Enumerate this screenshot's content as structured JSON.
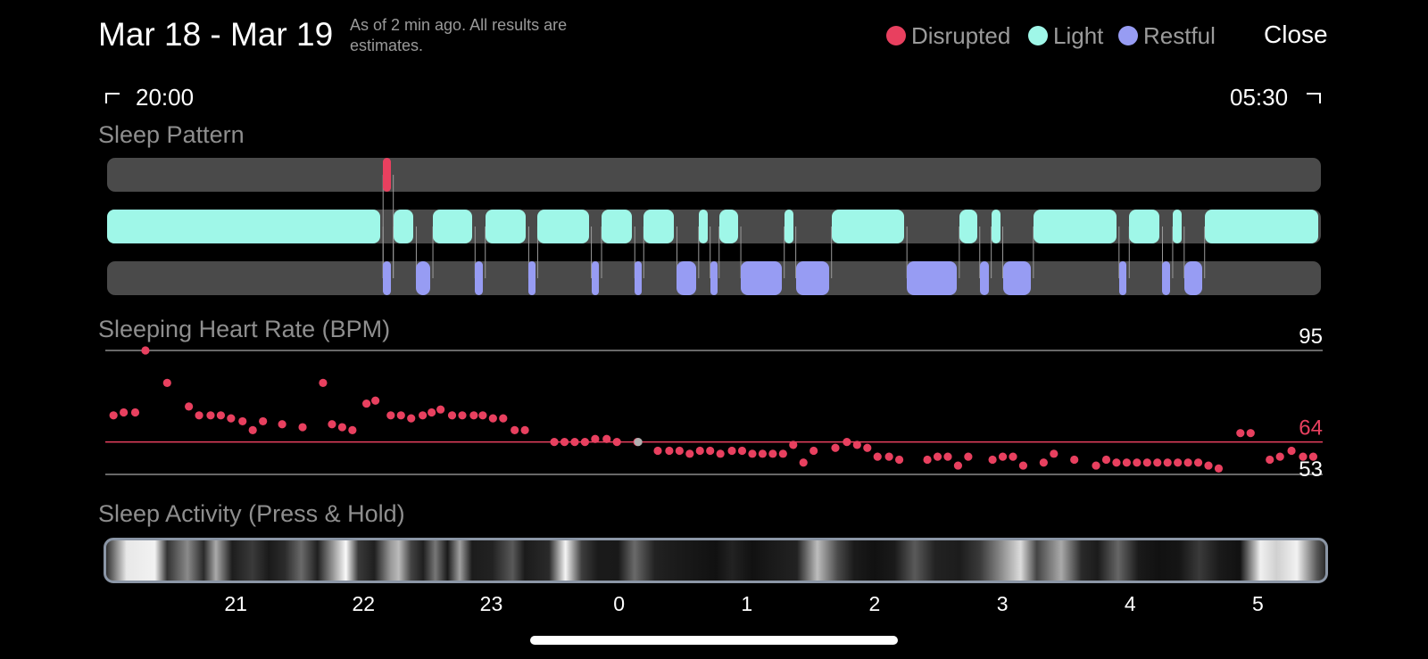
{
  "header": {
    "date_range": "Mar 18 - Mar 19",
    "note": "As of 2 min ago. All results are estimates.",
    "close_label": "Close"
  },
  "legend": [
    {
      "label": "Disrupted",
      "color": "#e8405f"
    },
    {
      "label": "Light",
      "color": "#9ff7e8"
    },
    {
      "label": "Restful",
      "color": "#979cf3"
    }
  ],
  "time_range": {
    "start": "20:00",
    "end": "05:30"
  },
  "sleep_pattern": {
    "title": "Sleep Pattern",
    "disrupted": [
      [
        2.16,
        2.24
      ]
    ],
    "light": [
      [
        0.0,
        2.16
      ],
      [
        2.24,
        2.42
      ],
      [
        2.55,
        2.88
      ],
      [
        2.96,
        3.3
      ],
      [
        3.37,
        3.79
      ],
      [
        3.87,
        4.13
      ],
      [
        4.2,
        4.46
      ],
      [
        4.63,
        4.72
      ],
      [
        4.79,
        4.96
      ],
      [
        5.3,
        5.39
      ],
      [
        5.67,
        6.26
      ],
      [
        6.67,
        6.83
      ],
      [
        6.92,
        7.01
      ],
      [
        7.25,
        7.92
      ],
      [
        8.0,
        8.26
      ],
      [
        8.34,
        8.43
      ],
      [
        8.59,
        9.5
      ]
    ],
    "restful": [
      [
        2.16,
        2.24
      ],
      [
        2.42,
        2.55
      ],
      [
        2.88,
        2.96
      ],
      [
        3.3,
        3.37
      ],
      [
        3.79,
        3.87
      ],
      [
        4.13,
        4.2
      ],
      [
        4.46,
        4.63
      ],
      [
        4.72,
        4.79
      ],
      [
        4.96,
        5.3
      ],
      [
        5.39,
        5.67
      ],
      [
        6.26,
        6.67
      ],
      [
        6.83,
        6.92
      ],
      [
        7.01,
        7.25
      ],
      [
        7.92,
        8.0
      ],
      [
        8.26,
        8.34
      ],
      [
        8.43,
        8.59
      ]
    ]
  },
  "heart_rate": {
    "title": "Sleeping Heart Rate (BPM)",
    "max_label": "95",
    "avg_label": "64",
    "min_label": "53",
    "max": 95,
    "avg": 64,
    "min": 53,
    "points": [
      [
        0.05,
        73
      ],
      [
        0.13,
        74
      ],
      [
        0.22,
        74
      ],
      [
        0.3,
        95
      ],
      [
        0.47,
        84
      ],
      [
        0.64,
        76
      ],
      [
        0.72,
        73
      ],
      [
        0.81,
        73
      ],
      [
        0.89,
        73
      ],
      [
        0.97,
        72
      ],
      [
        1.06,
        71
      ],
      [
        1.14,
        68
      ],
      [
        1.22,
        71
      ],
      [
        1.37,
        70
      ],
      [
        1.53,
        69
      ],
      [
        1.69,
        84
      ],
      [
        1.76,
        70
      ],
      [
        1.84,
        69
      ],
      [
        1.92,
        68
      ],
      [
        2.03,
        77
      ],
      [
        2.1,
        78
      ],
      [
        2.22,
        73
      ],
      [
        2.3,
        73
      ],
      [
        2.38,
        72
      ],
      [
        2.47,
        73
      ],
      [
        2.54,
        74
      ],
      [
        2.61,
        75
      ],
      [
        2.7,
        73
      ],
      [
        2.78,
        73
      ],
      [
        2.87,
        73
      ],
      [
        2.94,
        73
      ],
      [
        3.02,
        72
      ],
      [
        3.1,
        72
      ],
      [
        3.19,
        68
      ],
      [
        3.27,
        68
      ],
      [
        3.5,
        64
      ],
      [
        3.58,
        64
      ],
      [
        3.66,
        64
      ],
      [
        3.74,
        64
      ],
      [
        3.82,
        65
      ],
      [
        3.91,
        65
      ],
      [
        3.99,
        64
      ],
      [
        4.15,
        64
      ],
      [
        4.31,
        61
      ],
      [
        4.4,
        61
      ],
      [
        4.48,
        61
      ],
      [
        4.56,
        60
      ],
      [
        4.64,
        61
      ],
      [
        4.72,
        61
      ],
      [
        4.8,
        60
      ],
      [
        4.89,
        61
      ],
      [
        4.97,
        61
      ],
      [
        5.05,
        60
      ],
      [
        5.13,
        60
      ],
      [
        5.21,
        60
      ],
      [
        5.29,
        60
      ],
      [
        5.37,
        63
      ],
      [
        5.45,
        57
      ],
      [
        5.53,
        61
      ],
      [
        5.7,
        62
      ],
      [
        5.79,
        64
      ],
      [
        5.87,
        63
      ],
      [
        5.95,
        62
      ],
      [
        6.03,
        59
      ],
      [
        6.12,
        59
      ],
      [
        6.2,
        58
      ],
      [
        6.42,
        58
      ],
      [
        6.5,
        59
      ],
      [
        6.58,
        59
      ],
      [
        6.66,
        56
      ],
      [
        6.74,
        59
      ],
      [
        6.93,
        58
      ],
      [
        7.01,
        59
      ],
      [
        7.09,
        59
      ],
      [
        7.17,
        56
      ],
      [
        7.33,
        57
      ],
      [
        7.41,
        60
      ],
      [
        7.57,
        58
      ],
      [
        7.74,
        56
      ],
      [
        7.82,
        58
      ],
      [
        7.9,
        57
      ],
      [
        7.98,
        57
      ],
      [
        8.06,
        57
      ],
      [
        8.14,
        57
      ],
      [
        8.22,
        57
      ],
      [
        8.3,
        57
      ],
      [
        8.38,
        57
      ],
      [
        8.46,
        57
      ],
      [
        8.54,
        57
      ],
      [
        8.62,
        56
      ],
      [
        8.7,
        55
      ],
      [
        8.87,
        67
      ],
      [
        8.95,
        67
      ],
      [
        9.1,
        58
      ],
      [
        9.18,
        59
      ],
      [
        9.27,
        61
      ],
      [
        9.36,
        59
      ],
      [
        9.44,
        59
      ]
    ],
    "gray_points": [
      [
        4.15,
        64
      ]
    ]
  },
  "activity": {
    "title": "Sleep Activity (Press & Hold)",
    "axis_labels": [
      "21",
      "22",
      "23",
      "0",
      "1",
      "2",
      "3",
      "4",
      "5"
    ],
    "gradient_stops": [
      [
        0,
        "#303030"
      ],
      [
        0.5,
        "#e8e8e8"
      ],
      [
        1.2,
        "#f2f2f2"
      ],
      [
        1.5,
        "#333"
      ],
      [
        2.0,
        "#8a8a8a"
      ],
      [
        2.4,
        "#2a2a2a"
      ],
      [
        2.7,
        "#aaa"
      ],
      [
        3.1,
        "#1d1d1d"
      ],
      [
        3.6,
        "#3a3a3a"
      ],
      [
        4.0,
        "#1a1a1a"
      ],
      [
        4.4,
        "#2c2c2c"
      ],
      [
        4.8,
        "#6a6a6a"
      ],
      [
        5.2,
        "#202020"
      ],
      [
        5.9,
        "#fafafa"
      ],
      [
        6.2,
        "#3a3a3a"
      ],
      [
        6.6,
        "#1f1f1f"
      ],
      [
        7.0,
        "#999"
      ],
      [
        7.2,
        "#bbb"
      ],
      [
        7.5,
        "#444"
      ],
      [
        7.8,
        "#1f1f1f"
      ],
      [
        8.1,
        "#777"
      ],
      [
        8.4,
        "#1a1a1a"
      ],
      [
        8.7,
        "#a0a0a0"
      ],
      [
        9.0,
        "#1c1c1c"
      ],
      [
        9.5,
        "#222"
      ],
      [
        10.0,
        "#595959"
      ],
      [
        10.3,
        "#1b1b1b"
      ],
      [
        10.9,
        "#2a2a2a"
      ],
      [
        11.3,
        "#f5f5f5"
      ],
      [
        11.7,
        "#3d3d3d"
      ],
      [
        12.1,
        "#1a1a1a"
      ],
      [
        12.6,
        "#191919"
      ],
      [
        13.0,
        "#6a6a6a"
      ],
      [
        13.5,
        "#222"
      ],
      [
        14.0,
        "#1b1b1b"
      ],
      [
        14.6,
        "#151515"
      ],
      [
        15.0,
        "#111"
      ],
      [
        15.4,
        "#222"
      ],
      [
        15.9,
        "#111"
      ],
      [
        16.4,
        "#1a1a1a"
      ],
      [
        17.0,
        "#222"
      ],
      [
        17.5,
        "#bdbdbd"
      ],
      [
        18.0,
        "#4a4a4a"
      ],
      [
        18.4,
        "#1b1b1b"
      ],
      [
        18.9,
        "#111"
      ],
      [
        19.4,
        "#1a1a1a"
      ],
      [
        19.9,
        "#5a5a5a"
      ],
      [
        20.4,
        "#222"
      ],
      [
        21.0,
        "#1c1c1c"
      ],
      [
        21.5,
        "#3a3a3a"
      ],
      [
        22.0,
        "#888"
      ],
      [
        22.5,
        "#dcdcdc"
      ],
      [
        22.9,
        "#444"
      ],
      [
        23.5,
        "#aaa"
      ],
      [
        24.0,
        "#2a2a2a"
      ],
      [
        24.4,
        "#1b1b1b"
      ],
      [
        24.9,
        "#666"
      ],
      [
        25.4,
        "#1a1a1a"
      ],
      [
        25.9,
        "#111"
      ],
      [
        26.4,
        "#151515"
      ],
      [
        26.9,
        "#3a3a3a"
      ],
      [
        27.4,
        "#1a1a1a"
      ],
      [
        27.9,
        "#111"
      ],
      [
        28.4,
        "#f0f0f0"
      ],
      [
        28.8,
        "#d0d0d0"
      ],
      [
        29.3,
        "#f2f2f2"
      ],
      [
        29.8,
        "#555"
      ],
      [
        30,
        "#2c2c2c"
      ]
    ]
  }
}
